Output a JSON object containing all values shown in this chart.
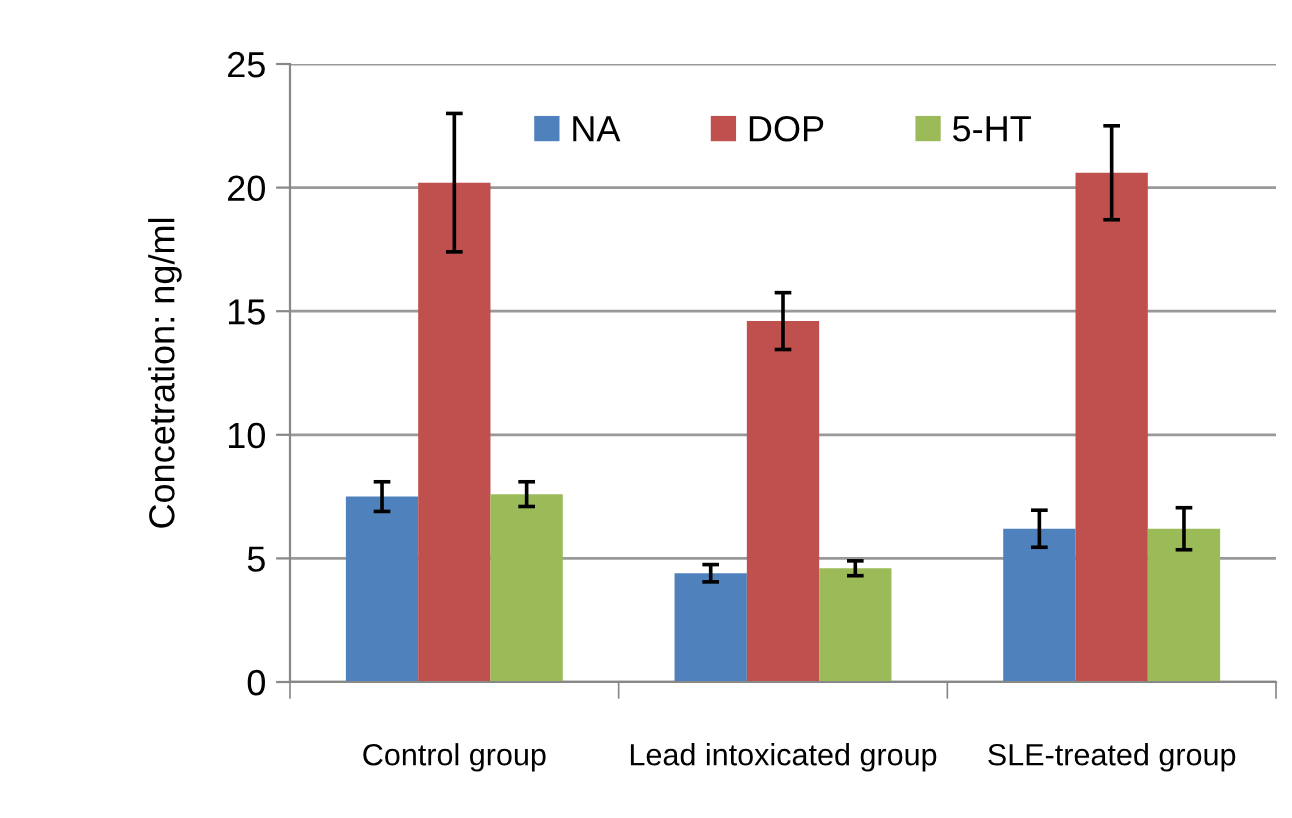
{
  "chart_data": {
    "type": "bar",
    "ylabel": "Concetration: ng/ml",
    "categories": [
      "Control group",
      "Lead intoxicated group",
      "SLE-treated group"
    ],
    "series": [
      {
        "name": "NA",
        "color": "#4f81bd",
        "values": [
          7.5,
          4.4,
          6.2
        ],
        "errors": [
          0.6,
          0.35,
          0.75
        ]
      },
      {
        "name": "DOP",
        "color": "#c0504d",
        "values": [
          20.2,
          14.6,
          20.6
        ],
        "errors": [
          2.8,
          1.15,
          1.9
        ]
      },
      {
        "name": "5-HT",
        "color": "#9bbb59",
        "values": [
          7.6,
          4.6,
          6.2
        ],
        "errors": [
          0.5,
          0.3,
          0.85
        ]
      }
    ],
    "ylim": [
      0,
      25
    ],
    "yticks": [
      0,
      5,
      10,
      15,
      20,
      25
    ],
    "grid": "y",
    "legend": "top"
  }
}
